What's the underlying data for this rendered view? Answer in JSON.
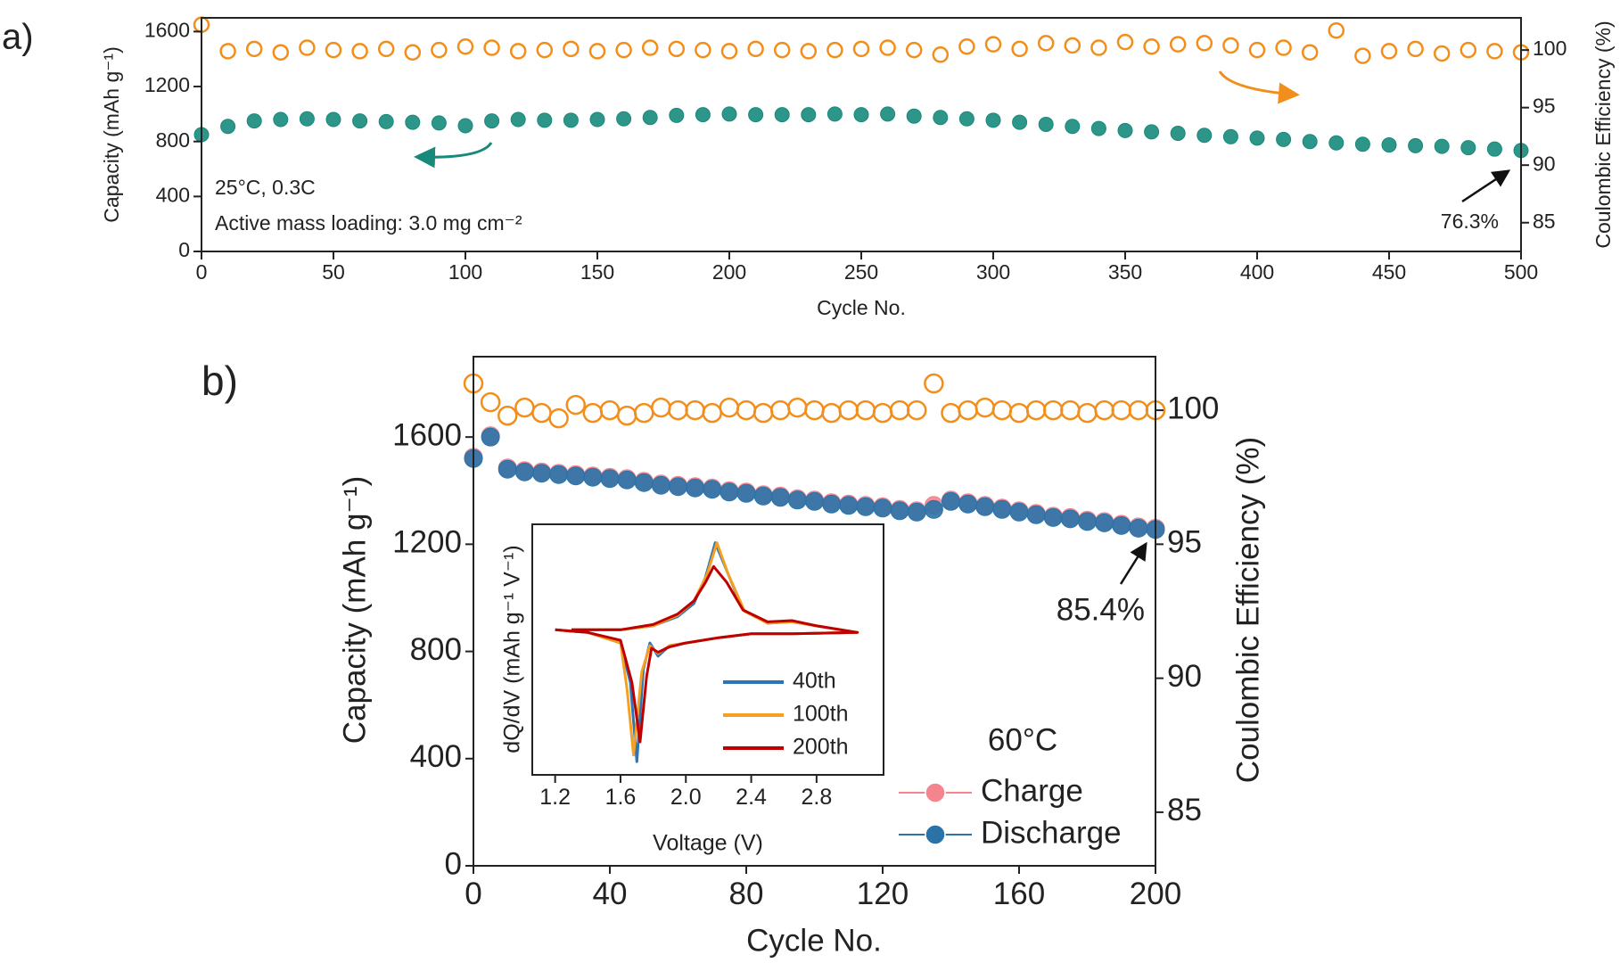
{
  "chart_data": [
    {
      "type": "scatter",
      "panel_label": "a)",
      "x_label": "Cycle No.",
      "y_label": "Capacity (mAh g⁻¹)",
      "y2_label": "Coulombic Efficiency (%)",
      "annotations": [
        "25°C, 0.3C",
        "Active mass loading: 3.0 mg cm⁻²",
        "76.3%"
      ],
      "xlim": [
        0,
        500
      ],
      "xticks": [
        0,
        50,
        100,
        150,
        200,
        250,
        300,
        350,
        400,
        450,
        500
      ],
      "ylim": [
        0,
        1700
      ],
      "yticks": [
        0,
        400,
        800,
        1200,
        1600
      ],
      "y2lim": [
        82.5,
        102.8
      ],
      "y2ticks": [
        85,
        90,
        95,
        100
      ],
      "x": [
        0,
        10,
        20,
        30,
        40,
        50,
        60,
        70,
        80,
        90,
        100,
        110,
        120,
        130,
        140,
        150,
        160,
        170,
        180,
        190,
        200,
        210,
        220,
        230,
        240,
        250,
        260,
        270,
        280,
        290,
        300,
        310,
        320,
        330,
        340,
        350,
        360,
        370,
        380,
        390,
        400,
        410,
        420,
        430,
        440,
        450,
        460,
        470,
        480,
        490,
        500
      ],
      "series": [
        {
          "color": "#f28e1c",
          "style": "open",
          "axis": "y2",
          "values": [
            102.2,
            99.9,
            100.1,
            99.8,
            100.2,
            100.0,
            99.9,
            100.1,
            99.8,
            100.0,
            100.3,
            100.2,
            99.9,
            100.0,
            100.1,
            99.9,
            100.0,
            100.2,
            100.1,
            100.0,
            99.9,
            100.1,
            100.0,
            99.9,
            100.0,
            100.1,
            100.2,
            100.0,
            99.6,
            100.3,
            100.5,
            100.1,
            100.6,
            100.4,
            100.2,
            100.7,
            100.3,
            100.5,
            100.6,
            100.4,
            100.0,
            100.2,
            99.8,
            101.7,
            99.5,
            99.9,
            100.1,
            99.7,
            100.0,
            99.9,
            99.8
          ]
        },
        {
          "color": "#178a7c",
          "style": "filled",
          "values": [
            850,
            910,
            950,
            960,
            965,
            960,
            950,
            945,
            940,
            935,
            915,
            950,
            960,
            955,
            955,
            960,
            965,
            975,
            990,
            995,
            1000,
            995,
            995,
            995,
            1000,
            995,
            1000,
            985,
            975,
            965,
            955,
            940,
            925,
            910,
            895,
            880,
            870,
            860,
            845,
            835,
            825,
            815,
            800,
            790,
            780,
            775,
            770,
            765,
            755,
            745,
            735
          ]
        }
      ]
    },
    {
      "type": "scatter",
      "panel_label": "b)",
      "x_label": "Cycle No.",
      "y_label": "Capacity (mAh g⁻¹)",
      "y2_label": "Coulombic Efficiency (%)",
      "annotations": [
        "60°C",
        "85.4%"
      ],
      "xlim": [
        0,
        200
      ],
      "xticks": [
        0,
        40,
        80,
        120,
        160,
        200
      ],
      "ylim": [
        0,
        1900
      ],
      "yticks": [
        0,
        400,
        800,
        1200,
        1600
      ],
      "y2lim": [
        83,
        102
      ],
      "y2ticks": [
        85,
        90,
        95,
        100
      ],
      "x": [
        0,
        5,
        10,
        15,
        20,
        25,
        30,
        35,
        40,
        45,
        50,
        55,
        60,
        65,
        70,
        75,
        80,
        85,
        90,
        95,
        100,
        105,
        110,
        115,
        120,
        125,
        130,
        135,
        140,
        145,
        150,
        155,
        160,
        165,
        170,
        175,
        180,
        185,
        190,
        195,
        200
      ],
      "series": [
        {
          "color": "#f28e1c",
          "style": "open",
          "axis": "y2",
          "values": [
            101.0,
            100.3,
            99.8,
            100.1,
            99.9,
            99.7,
            100.2,
            99.9,
            100.0,
            99.8,
            99.9,
            100.1,
            100.0,
            100.0,
            99.9,
            100.1,
            100.0,
            99.9,
            100.0,
            100.1,
            100.0,
            99.9,
            100.0,
            100.0,
            99.9,
            100.0,
            100.0,
            101.0,
            99.9,
            100.0,
            100.1,
            100.0,
            99.9,
            100.0,
            100.0,
            100.0,
            99.9,
            100.0,
            100.0,
            100.0,
            100.0
          ]
        },
        {
          "name": "Charge",
          "color": "#f4858e",
          "style": "filled",
          "values": [
            1525,
            1605,
            1485,
            1475,
            1470,
            1465,
            1460,
            1455,
            1450,
            1445,
            1435,
            1425,
            1420,
            1415,
            1410,
            1400,
            1395,
            1385,
            1380,
            1370,
            1365,
            1355,
            1350,
            1345,
            1340,
            1330,
            1325,
            1345,
            1365,
            1355,
            1345,
            1335,
            1325,
            1315,
            1305,
            1300,
            1290,
            1285,
            1275,
            1265,
            1260
          ]
        },
        {
          "name": "Discharge",
          "color": "#2a73a8",
          "style": "filled",
          "values": [
            1520,
            1600,
            1480,
            1470,
            1465,
            1460,
            1455,
            1450,
            1445,
            1440,
            1430,
            1420,
            1415,
            1410,
            1405,
            1395,
            1390,
            1380,
            1375,
            1365,
            1360,
            1350,
            1345,
            1340,
            1335,
            1325,
            1320,
            1330,
            1360,
            1350,
            1340,
            1330,
            1320,
            1310,
            1300,
            1295,
            1285,
            1280,
            1270,
            1260,
            1255
          ]
        }
      ]
    },
    {
      "type": "line",
      "x_label": "Voltage (V)",
      "y_label": "dQ/dV (mAh g⁻¹ V⁻¹)",
      "xlim": [
        1.06,
        3.21
      ],
      "xticks": [
        1.2,
        1.6,
        {
          "value": 2,
          "label": "2.0"
        },
        2.4,
        2.8
      ],
      "ylim": [
        -1.1,
        0.8
      ],
      "series": [
        {
          "name": "40th",
          "color": "#2e75b6",
          "x": [
            1.3,
            1.6,
            1.8,
            1.95,
            2.05,
            2.12,
            2.18,
            2.25,
            2.35,
            2.5,
            2.65,
            2.8,
            3.05,
            2.65,
            2.4,
            2.2,
            2.0,
            1.9,
            1.83,
            1.78,
            1.74,
            1.7,
            1.66,
            1.6,
            1.4,
            1.2
          ],
          "values": [
            0,
            0,
            0.03,
            0.1,
            0.2,
            0.4,
            0.66,
            0.45,
            0.15,
            0.05,
            0.06,
            0.03,
            -0.02,
            -0.03,
            -0.03,
            -0.06,
            -0.1,
            -0.12,
            -0.2,
            -0.1,
            -0.3,
            -1.0,
            -0.4,
            -0.1,
            -0.02,
            0
          ]
        },
        {
          "name": "100th",
          "color": "#f5a020",
          "x": [
            1.3,
            1.6,
            1.8,
            1.95,
            2.05,
            2.13,
            2.19,
            2.26,
            2.36,
            2.5,
            2.65,
            2.8,
            3.05,
            2.65,
            2.4,
            2.2,
            2.0,
            1.9,
            1.83,
            1.78,
            1.73,
            1.68,
            1.64,
            1.6,
            1.4,
            1.2
          ],
          "values": [
            0,
            0,
            0.03,
            0.11,
            0.22,
            0.42,
            0.66,
            0.42,
            0.14,
            0.05,
            0.06,
            0.03,
            -0.02,
            -0.03,
            -0.03,
            -0.06,
            -0.1,
            -0.12,
            -0.18,
            -0.12,
            -0.32,
            -0.95,
            -0.45,
            -0.1,
            -0.02,
            0
          ]
        },
        {
          "name": "200th",
          "color": "#c00000",
          "x": [
            1.3,
            1.6,
            1.8,
            1.95,
            2.05,
            2.12,
            2.17,
            2.25,
            2.35,
            2.5,
            2.65,
            2.8,
            3.05,
            2.65,
            2.4,
            2.2,
            2.0,
            1.9,
            1.83,
            1.79,
            1.76,
            1.72,
            1.67,
            1.6,
            1.4,
            1.2
          ],
          "values": [
            0,
            0,
            0.04,
            0.12,
            0.22,
            0.36,
            0.48,
            0.36,
            0.15,
            0.06,
            0.07,
            0.03,
            -0.02,
            -0.03,
            -0.03,
            -0.06,
            -0.1,
            -0.13,
            -0.17,
            -0.14,
            -0.35,
            -0.85,
            -0.4,
            -0.08,
            -0.02,
            0
          ]
        }
      ]
    }
  ]
}
